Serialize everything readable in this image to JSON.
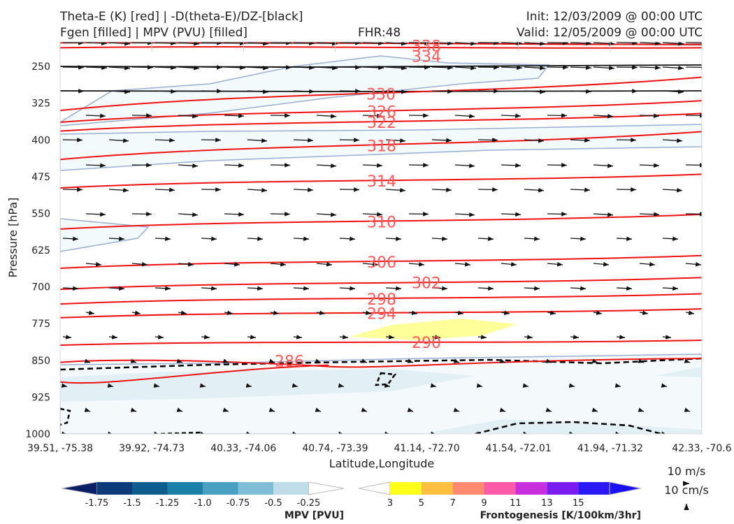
{
  "header": {
    "title_left_1": "Theta-E (K) [red] | -D(theta-E)/DZ-[black]",
    "title_left_2": "Fgen [filled] | MPV (PVU) [filled]",
    "title_center": "FHR:48",
    "title_right_1": "Init: 12/03/2009 @ 00:00 UTC",
    "title_right_2": "Valid: 12/05/2009 @ 00:00 UTC"
  },
  "chart_data": {
    "type": "cross-section",
    "xlabel": "Latitude,Longitude",
    "ylabel": "Pressure [hPa]",
    "x_ticks": [
      "39.51, -75.38",
      "39.92, -74.73",
      "40.33, -74.06",
      "40.74, -73.39",
      "41.14, -72.70",
      "41.54, -72.01",
      "41.94, -71.32",
      "42.33, -70.6"
    ],
    "y_ticks": [
      250,
      325,
      400,
      475,
      550,
      625,
      700,
      775,
      850,
      925,
      1000
    ],
    "ylim": [
      1000,
      200
    ],
    "theta_e_contours": [
      {
        "value": 286,
        "label": "286",
        "p_left": 854,
        "p_right": 846
      },
      {
        "value": 290,
        "label": "290",
        "p_left": 819,
        "p_right": 809
      },
      {
        "value": 294,
        "label": "294",
        "p_left": 763,
        "p_right": 745
      },
      {
        "value": 298,
        "label": "298",
        "p_left": 735,
        "p_right": 714
      },
      {
        "value": 302,
        "label": "302",
        "p_left": 705,
        "p_right": 681
      },
      {
        "value": 306,
        "label": "306",
        "p_left": 662,
        "p_right": 636
      },
      {
        "value": 310,
        "label": "310",
        "p_left": 582,
        "p_right": 552
      },
      {
        "value": 314,
        "label": "314",
        "p_left": 498,
        "p_right": 470
      },
      {
        "value": 318,
        "label": "318",
        "p_left": 440,
        "p_right": 383
      },
      {
        "value": 322,
        "label": "322",
        "p_left": 382,
        "p_right": 346
      },
      {
        "value": 326,
        "label": "326",
        "p_left": 364,
        "p_right": 320
      },
      {
        "value": 330,
        "label": "330",
        "p_left": 340,
        "p_right": 272
      },
      {
        "value": 334,
        "label": "334",
        "p_left": 212,
        "p_right": 212
      },
      {
        "value": 338,
        "label": "338",
        "p_left": 202,
        "p_right": 205
      }
    ],
    "contour_label_text": [
      "330",
      "326",
      "322",
      "318",
      "314",
      "310",
      "306",
      "302",
      "298",
      "294",
      "290",
      "286",
      "334",
      "338"
    ],
    "mpv_colorbar": {
      "title": "MPV [PVU]",
      "ticks": [
        "-1.75",
        "-1.5",
        "-1.25",
        "-1.0",
        "-0.75",
        "-0.5",
        "-0.25"
      ],
      "colors": [
        "#0b1f66",
        "#0d3b7a",
        "#0f5c8e",
        "#1a80a8",
        "#4aa0c3",
        "#7fbed6",
        "#bfdde8",
        "#ffffff"
      ]
    },
    "fgen_colorbar": {
      "title": "Frontogenesis [K/100km/3hr]",
      "ticks": [
        "3",
        "5",
        "7",
        "9",
        "11",
        "13",
        "15"
      ],
      "colors": [
        "#ffffff",
        "#ffff1a",
        "#ffc040",
        "#ff8a70",
        "#ff5aa8",
        "#c82fdc",
        "#7a1cf0",
        "#2a18f5",
        "#1a10ff"
      ]
    },
    "wind_reference": {
      "horizontal": "10 m/s",
      "vertical": "10 cm/s"
    }
  }
}
